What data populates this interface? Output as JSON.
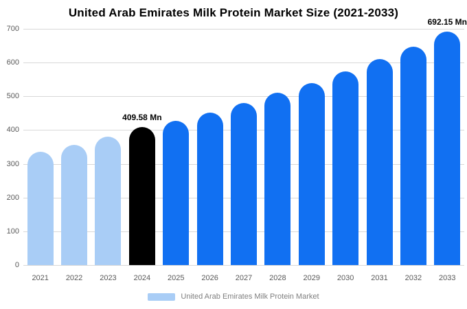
{
  "title": "United Arab Emirates Milk Protein Market Size (2021-2033)",
  "legend": {
    "label": "United Arab Emirates Milk Protein Market",
    "swatch_color": "#a9cdf6"
  },
  "axis": {
    "tick_color": "#595959",
    "grid_color": "#d8d8d8"
  },
  "chart_data": {
    "type": "bar",
    "title": "United Arab Emirates Milk Protein Market Size (2021-2033)",
    "categories": [
      "2021",
      "2022",
      "2023",
      "2024",
      "2025",
      "2026",
      "2027",
      "2028",
      "2029",
      "2030",
      "2031",
      "2032",
      "2033"
    ],
    "values": [
      335,
      356,
      380,
      409.58,
      428,
      452,
      480,
      510,
      540,
      574,
      610,
      648,
      692.15
    ],
    "unit": "Mn",
    "bar_colors": [
      "#a9cdf6",
      "#a9cdf6",
      "#a9cdf6",
      "#000000",
      "#1170f2",
      "#1170f2",
      "#1170f2",
      "#1170f2",
      "#1170f2",
      "#1170f2",
      "#1170f2",
      "#1170f2",
      "#1170f2"
    ],
    "ylim": [
      0,
      700
    ],
    "yticks": [
      0,
      100,
      200,
      300,
      400,
      500,
      600,
      700
    ],
    "grid": true,
    "legend_position": "bottom",
    "annotations": [
      {
        "category": "2024",
        "text": "409.58 Mn"
      },
      {
        "category": "2033",
        "text": "692.15 Mn"
      }
    ]
  }
}
